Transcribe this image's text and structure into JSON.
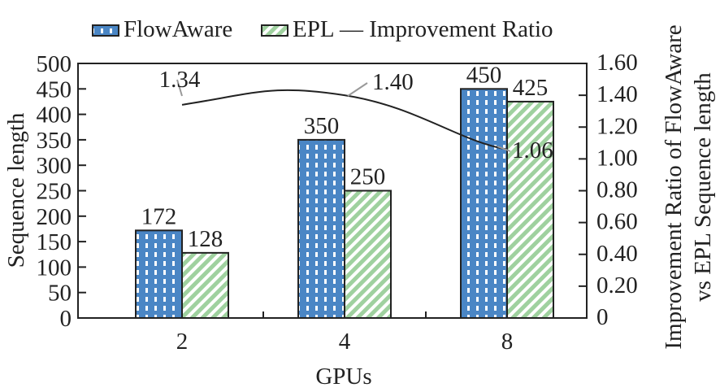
{
  "chart_data": {
    "type": "bar",
    "categories": [
      "2",
      "4",
      "8"
    ],
    "series": [
      {
        "name": "FlowAware",
        "values": [
          172,
          350,
          450
        ],
        "color": "#4a86c5"
      },
      {
        "name": "EPL",
        "values": [
          128,
          250,
          425
        ],
        "color": "#9fd19f"
      }
    ],
    "line_series": {
      "name": "Improvement Ratio",
      "values": [
        1.34,
        1.4,
        1.06
      ],
      "labels": [
        "1.34",
        "1.40",
        "1.06"
      ]
    },
    "xlabel": "GPUs",
    "ylabel": "Sequence length",
    "y2label_line1": "Improvement Ratio of FlowAware",
    "y2label_line2": "vs EPL Sequence length",
    "ylim": [
      0,
      500
    ],
    "y2lim": [
      0,
      1.6
    ],
    "yticks": [
      "0",
      "50",
      "100",
      "150",
      "200",
      "250",
      "300",
      "350",
      "400",
      "450",
      "500"
    ],
    "y2ticks": [
      "0",
      "0.20",
      "0.40",
      "0.60",
      "0.80",
      "1.00",
      "1.20",
      "1.40",
      "1.60"
    ],
    "legend": {
      "position": "top",
      "entries": [
        "FlowAware",
        "EPL",
        "— Improvement Ratio"
      ]
    }
  }
}
